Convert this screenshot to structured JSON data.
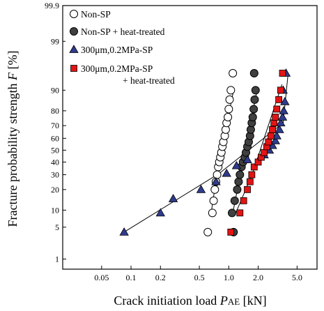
{
  "chart_data": {
    "type": "scatter",
    "title": "",
    "xlabel": {
      "text": "Crack initiation load ",
      "var": "P",
      "sub": "AE",
      "unit": " [kN]"
    },
    "ylabel": {
      "text": "Fracture probability strength ",
      "var": "F",
      "unit": " [%]"
    },
    "x_scale": "log",
    "y_scale": "probability-normal",
    "xlim": [
      0.02,
      8.0
    ],
    "ylim": [
      0.55,
      99.9
    ],
    "x_ticks": [
      {
        "value": 0.05,
        "label": "0.05"
      },
      {
        "value": 0.1,
        "label": "0.1"
      },
      {
        "value": 0.2,
        "label": "0.2"
      },
      {
        "value": 0.5,
        "label": "0.5"
      },
      {
        "value": 1.0,
        "label": "1.0"
      },
      {
        "value": 2.0,
        "label": "2.0"
      },
      {
        "value": 5.0,
        "label": "5.0"
      }
    ],
    "y_ticks": [
      {
        "value": 1,
        "label": "1"
      },
      {
        "value": 5,
        "label": "5"
      },
      {
        "value": 10,
        "label": "10"
      },
      {
        "value": 20,
        "label": "20"
      },
      {
        "value": 30,
        "label": "30"
      },
      {
        "value": 40,
        "label": "40"
      },
      {
        "value": 50,
        "label": "50"
      },
      {
        "value": 60,
        "label": "60"
      },
      {
        "value": 70,
        "label": "70"
      },
      {
        "value": 80,
        "label": "80"
      },
      {
        "value": 90,
        "label": "90"
      },
      {
        "value": 99,
        "label": "99"
      },
      {
        "value": 99.9,
        "label": "99.9"
      }
    ],
    "legend_position": "top-left",
    "series": [
      {
        "name": "Non-SP",
        "marker": "circle-open",
        "color": "#ffffff",
        "points": [
          [
            0.61,
            4
          ],
          [
            0.68,
            9
          ],
          [
            0.7,
            14
          ],
          [
            0.72,
            20
          ],
          [
            0.74,
            25
          ],
          [
            0.76,
            30
          ],
          [
            0.78,
            36
          ],
          [
            0.8,
            40
          ],
          [
            0.82,
            44
          ],
          [
            0.84,
            48
          ],
          [
            0.86,
            53
          ],
          [
            0.88,
            57
          ],
          [
            0.91,
            62
          ],
          [
            0.93,
            67
          ],
          [
            0.95,
            72
          ],
          [
            0.98,
            76
          ],
          [
            1.0,
            81
          ],
          [
            1.02,
            86
          ],
          [
            1.05,
            90
          ],
          [
            1.1,
            95
          ]
        ],
        "fit_line": [
          [
            0.66,
            9
          ],
          [
            0.76,
            31
          ],
          [
            1.12,
            90
          ]
        ]
      },
      {
        "name": "Non-SP + heat-treated",
        "marker": "circle-filled",
        "color": "#404040",
        "points": [
          [
            1.12,
            4
          ],
          [
            1.08,
            9
          ],
          [
            1.15,
            14
          ],
          [
            1.22,
            20
          ],
          [
            1.26,
            25
          ],
          [
            1.3,
            30
          ],
          [
            1.35,
            36
          ],
          [
            1.4,
            40
          ],
          [
            1.46,
            44
          ],
          [
            1.5,
            48
          ],
          [
            1.55,
            53
          ],
          [
            1.6,
            57
          ],
          [
            1.65,
            62
          ],
          [
            1.68,
            67
          ],
          [
            1.72,
            72
          ],
          [
            1.76,
            76
          ],
          [
            1.8,
            81
          ],
          [
            1.84,
            86
          ],
          [
            1.88,
            90
          ],
          [
            1.82,
            95
          ]
        ],
        "fit_line": [
          [
            1.1,
            9
          ],
          [
            1.32,
            31
          ],
          [
            1.95,
            90
          ]
        ]
      },
      {
        "name": "300μm,0.2MPa-SP",
        "marker": "triangle",
        "color": "#2f3b8c",
        "points": [
          [
            0.085,
            4
          ],
          [
            0.2,
            9
          ],
          [
            0.27,
            15
          ],
          [
            0.52,
            20
          ],
          [
            0.74,
            25
          ],
          [
            0.95,
            31
          ],
          [
            1.2,
            37
          ],
          [
            1.55,
            42
          ],
          [
            2.3,
            46
          ],
          [
            2.6,
            50
          ],
          [
            2.8,
            54
          ],
          [
            3.0,
            58
          ],
          [
            3.1,
            62
          ],
          [
            3.3,
            67
          ],
          [
            3.4,
            72
          ],
          [
            3.55,
            76
          ],
          [
            3.65,
            80
          ],
          [
            3.75,
            85
          ],
          [
            3.6,
            90
          ],
          [
            3.85,
            95
          ]
        ],
        "fit_line": [
          [
            0.085,
            4
          ],
          [
            0.8,
            31
          ],
          [
            3.6,
            72
          ],
          [
            4.05,
            95
          ]
        ]
      },
      {
        "name": "300μm,0.2MPa-SP",
        "name_cont": "+ heat-treated",
        "marker": "square",
        "color": "#e21414",
        "points": [
          [
            1.05,
            4
          ],
          [
            1.3,
            9
          ],
          [
            1.42,
            14
          ],
          [
            1.55,
            20
          ],
          [
            1.65,
            25
          ],
          [
            1.72,
            30
          ],
          [
            1.82,
            36
          ],
          [
            2.0,
            40
          ],
          [
            2.15,
            44
          ],
          [
            2.3,
            48
          ],
          [
            2.45,
            53
          ],
          [
            2.55,
            57
          ],
          [
            2.7,
            62
          ],
          [
            2.8,
            67
          ],
          [
            2.9,
            72
          ],
          [
            3.0,
            76
          ],
          [
            3.1,
            81
          ],
          [
            3.25,
            86
          ],
          [
            3.4,
            90
          ],
          [
            3.55,
            95
          ]
        ],
        "fit_line": [
          [
            1.18,
            9
          ],
          [
            1.75,
            31
          ],
          [
            3.5,
            92
          ]
        ]
      }
    ]
  }
}
